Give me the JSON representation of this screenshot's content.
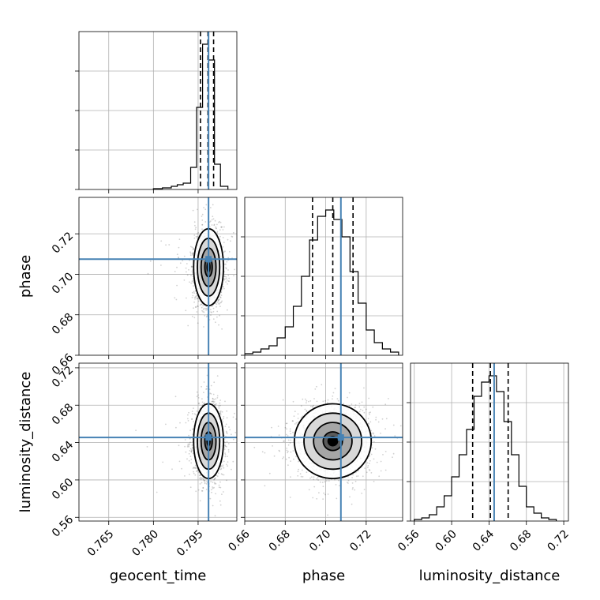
{
  "chart_data": {
    "type": "corner",
    "truth_color": "#4682b4",
    "parameters": [
      {
        "name": "geocent_time",
        "label": "geocent_time",
        "range": [
          0.755,
          0.808
        ],
        "ticks": [
          0.765,
          0.78,
          0.795
        ],
        "tick_labels": [
          "0.765",
          "0.780",
          "0.795"
        ],
        "truth": 0.7985,
        "quantiles": [
          0.7958,
          0.7983,
          0.8002
        ]
      },
      {
        "name": "phase",
        "label": "phase",
        "range": [
          0.66,
          0.738
        ],
        "ticks": [
          0.66,
          0.68,
          0.7,
          0.72
        ],
        "tick_labels": [
          "0.66",
          "0.68",
          "0.70",
          "0.72"
        ],
        "truth": 0.7075,
        "quantiles": [
          0.6935,
          0.7035,
          0.7135
        ]
      },
      {
        "name": "luminosity_distance",
        "label": "luminosity_distance",
        "range": [
          0.556,
          0.725
        ],
        "ticks": [
          0.56,
          0.6,
          0.64,
          0.68,
          0.72
        ],
        "tick_labels": [
          "0.56",
          "0.60",
          "0.64",
          "0.68",
          "0.72"
        ],
        "truth": 0.6455,
        "quantiles": [
          0.6225,
          0.6415,
          0.6605
        ]
      }
    ],
    "histograms": [
      {
        "param": "geocent_time",
        "edges": [
          0.79,
          0.7925,
          0.7945,
          0.7965,
          0.7985,
          0.8005,
          0.8025,
          0.805
        ],
        "counts": [
          0.04,
          0.14,
          0.52,
          0.92,
          0.82,
          0.16,
          0.02
        ],
        "tail_edges": [
          0.78,
          0.783,
          0.786,
          0.788,
          0.79
        ],
        "tail_counts": [
          0.005,
          0.01,
          0.02,
          0.03
        ]
      },
      {
        "param": "phase",
        "edges": [
          0.66,
          0.664,
          0.668,
          0.672,
          0.676,
          0.68,
          0.684,
          0.688,
          0.692,
          0.696,
          0.7,
          0.704,
          0.708,
          0.712,
          0.716,
          0.72,
          0.724,
          0.728,
          0.732,
          0.736
        ],
        "counts": [
          0.01,
          0.02,
          0.04,
          0.06,
          0.11,
          0.18,
          0.31,
          0.5,
          0.73,
          0.88,
          0.92,
          0.86,
          0.75,
          0.53,
          0.33,
          0.16,
          0.08,
          0.04,
          0.02
        ]
      },
      {
        "param": "luminosity_distance",
        "edges": [
          0.56,
          0.568,
          0.576,
          0.584,
          0.592,
          0.6,
          0.608,
          0.616,
          0.624,
          0.632,
          0.64,
          0.648,
          0.656,
          0.664,
          0.672,
          0.68,
          0.688,
          0.696,
          0.704,
          0.712
        ],
        "counts": [
          0.01,
          0.02,
          0.04,
          0.09,
          0.16,
          0.28,
          0.42,
          0.58,
          0.79,
          0.88,
          0.92,
          0.82,
          0.63,
          0.42,
          0.22,
          0.09,
          0.05,
          0.02,
          0.01
        ]
      }
    ],
    "scatter_2d": [
      {
        "x": "geocent_time",
        "y": "phase",
        "center": [
          0.7985,
          0.7035
        ],
        "sd": [
          0.0025,
          0.0095
        ],
        "corr": 0.0,
        "samples": 1600,
        "outlier_fraction": 0.06
      },
      {
        "x": "geocent_time",
        "y": "luminosity_distance",
        "center": [
          0.7985,
          0.6415
        ],
        "sd": [
          0.0025,
          0.02
        ],
        "corr": 0.0,
        "samples": 1600,
        "outlier_fraction": 0.06
      },
      {
        "x": "phase",
        "y": "luminosity_distance",
        "center": [
          0.7035,
          0.6415
        ],
        "sd": [
          0.0095,
          0.02
        ],
        "corr": 0.05,
        "samples": 1600,
        "outlier_fraction": 0.03
      }
    ],
    "contour_levels_sigma": [
      0.5,
      1.0,
      1.5,
      2.0
    ],
    "grid": true,
    "legend": "none"
  }
}
